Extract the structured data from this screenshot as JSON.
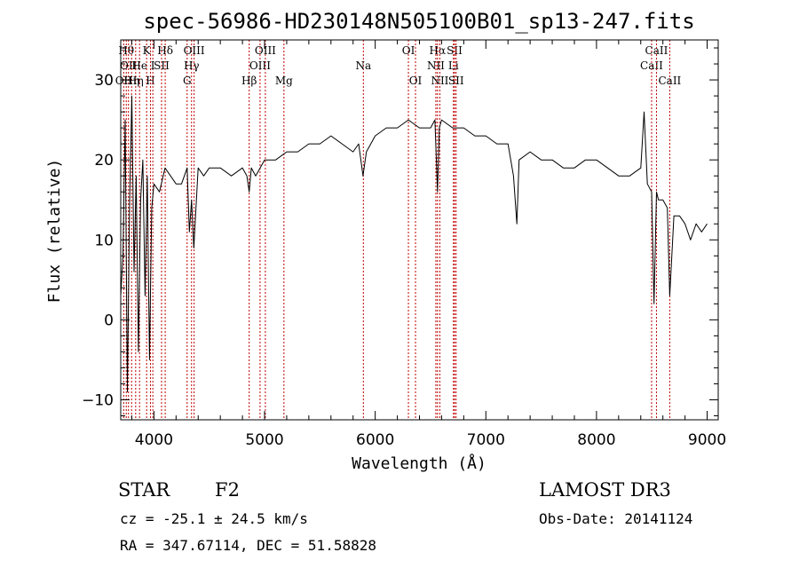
{
  "chart_data": {
    "type": "line",
    "title": "spec-56986-HD230148N505100B01_sp13-247.fits",
    "xlabel": "Wavelength (Å)",
    "ylabel": "Flux (relative)",
    "xlim": [
      3700,
      9100
    ],
    "ylim": [
      -12.5,
      35
    ],
    "xticks": [
      4000,
      5000,
      6000,
      7000,
      8000,
      9000
    ],
    "yticks": [
      -10,
      0,
      10,
      20,
      30
    ],
    "grid": false,
    "series": [
      {
        "color": "#000000",
        "x": [
          3700,
          3720,
          3740,
          3760,
          3780,
          3800,
          3820,
          3840,
          3860,
          3880,
          3900,
          3920,
          3940,
          3960,
          3980,
          4000,
          4050,
          4100,
          4150,
          4200,
          4250,
          4300,
          4320,
          4340,
          4360,
          4400,
          4450,
          4500,
          4600,
          4700,
          4800,
          4840,
          4861,
          4880,
          4920,
          5000,
          5100,
          5200,
          5300,
          5400,
          5500,
          5600,
          5700,
          5800,
          5850,
          5890,
          5920,
          6000,
          6100,
          6200,
          6300,
          6400,
          6500,
          6540,
          6563,
          6580,
          6600,
          6700,
          6800,
          6900,
          7000,
          7100,
          7200,
          7250,
          7280,
          7300,
          7400,
          7500,
          7600,
          7700,
          7800,
          7900,
          8000,
          8100,
          8200,
          8300,
          8400,
          8430,
          8460,
          8498,
          8520,
          8542,
          8560,
          8600,
          8640,
          8662,
          8700,
          8750,
          8800,
          8850,
          8900,
          8950,
          9000
        ],
        "y": [
          3,
          8,
          25,
          -9,
          15,
          28,
          6,
          18,
          -4,
          15,
          20,
          3,
          18,
          -5,
          14,
          17,
          16,
          19,
          18,
          17,
          17,
          19,
          11,
          15,
          9,
          19,
          18,
          19,
          19,
          18,
          19,
          18,
          16,
          19,
          18,
          20,
          20,
          21,
          21,
          22,
          22,
          23,
          22,
          21,
          22,
          18,
          21,
          23,
          24,
          24,
          25,
          24,
          24,
          25,
          16,
          24,
          25,
          24,
          24,
          23,
          23,
          22,
          22,
          18,
          12,
          20,
          21,
          20,
          20,
          19,
          19,
          20,
          20,
          19,
          18,
          18,
          19,
          26,
          17,
          16,
          2,
          16,
          15,
          15,
          14,
          3,
          13,
          13,
          12,
          10,
          12,
          11,
          12
        ]
      }
    ],
    "lines": [
      {
        "x": 3727,
        "label": "OII",
        "row": 3
      },
      {
        "x": 3750,
        "label": "Hθ",
        "row": 1
      },
      {
        "x": 3770,
        "label": "OII",
        "row": 2
      },
      {
        "x": 3798,
        "label": "Hη",
        "row": 3
      },
      {
        "x": 3835,
        "label": "Hη",
        "row": 3
      },
      {
        "x": 3870,
        "label": "He",
        "row": 2
      },
      {
        "x": 3934,
        "label": "K",
        "row": 1
      },
      {
        "x": 3969,
        "label": "H",
        "row": 3
      },
      {
        "x": 3990,
        "label": "I",
        "row": 2
      },
      {
        "x": 4069,
        "label": "SII",
        "row": 2
      },
      {
        "x": 4102,
        "label": "Hδ",
        "row": 1
      },
      {
        "x": 4300,
        "label": "G",
        "row": 3
      },
      {
        "x": 4340,
        "label": "Hγ",
        "row": 2
      },
      {
        "x": 4363,
        "label": "OIII",
        "row": 1
      },
      {
        "x": 4861,
        "label": "Hβ",
        "row": 3
      },
      {
        "x": 4959,
        "label": "OIII",
        "row": 2
      },
      {
        "x": 5007,
        "label": "OIII",
        "row": 1
      },
      {
        "x": 5175,
        "label": "Mg",
        "row": 3
      },
      {
        "x": 5893,
        "label": "Na",
        "row": 2
      },
      {
        "x": 6300,
        "label": "OI",
        "row": 1
      },
      {
        "x": 6364,
        "label": "OI",
        "row": 3
      },
      {
        "x": 6548,
        "label": "NII",
        "row": 2
      },
      {
        "x": 6563,
        "label": "Hα",
        "row": 1
      },
      {
        "x": 6584,
        "label": "NII",
        "row": 3
      },
      {
        "x": 6717,
        "label": "SII",
        "row": 1
      },
      {
        "x": 6707,
        "label": "Li",
        "row": 2
      },
      {
        "x": 6731,
        "label": "SII",
        "row": 3
      },
      {
        "x": 8498,
        "label": "CaII",
        "row": 2
      },
      {
        "x": 8542,
        "label": "CaII",
        "row": 1
      },
      {
        "x": 8662,
        "label": "CaII",
        "row": 3
      }
    ]
  },
  "info": {
    "object_class": "STAR",
    "subclass": "F2",
    "survey": "LAMOST DR3",
    "cz": "cz = -25.1 ± 24.5 km/s",
    "obs_date": "Obs-Date: 20141124",
    "radec": "RA = 347.67114, DEC =  51.58828"
  }
}
